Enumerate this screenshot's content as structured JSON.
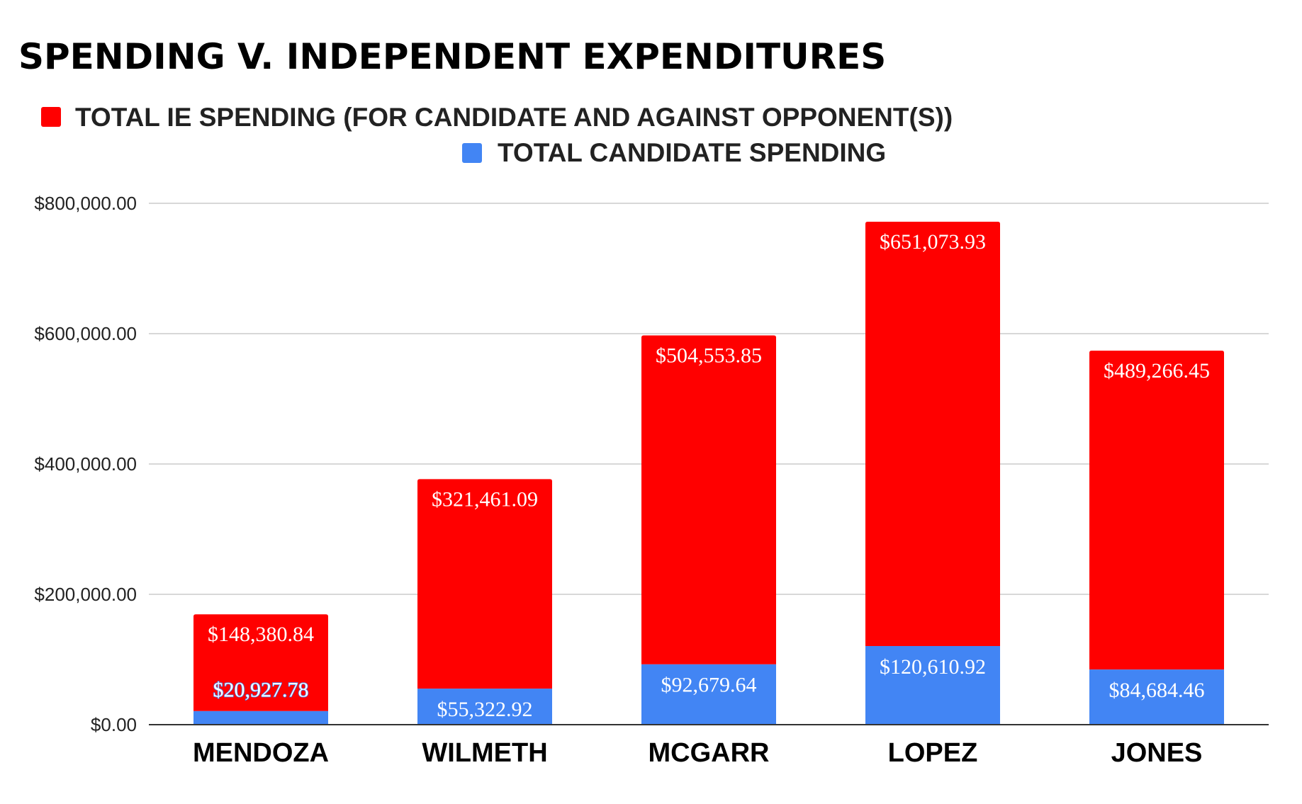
{
  "chart_data": {
    "type": "bar",
    "stacked": true,
    "title": "SPENDING V. INDEPENDENT EXPENDITURES",
    "categories": [
      "MENDOZA",
      "WILMETH",
      "MCGARR",
      "LOPEZ",
      "JONES"
    ],
    "series": [
      {
        "name": "TOTAL CANDIDATE SPENDING",
        "color": "#4285f4",
        "values": [
          20927.78,
          55322.92,
          92679.64,
          120610.92,
          84684.46
        ],
        "labels": [
          "$20,927.78",
          "$55,322.92",
          "$92,679.64",
          "$120,610.92",
          "$84,684.46"
        ]
      },
      {
        "name": "TOTAL IE SPENDING (FOR CANDIDATE AND AGAINST OPPONENT(S))",
        "color": "#ff0000",
        "values": [
          148380.84,
          321461.09,
          504553.85,
          651073.93,
          489266.45
        ],
        "labels": [
          "$148,380.84",
          "$321,461.09",
          "$504,553.85",
          "$651,073.93",
          "$489,266.45"
        ]
      }
    ],
    "legend_order": [
      1,
      0
    ],
    "ylim": [
      0,
      800000
    ],
    "yticks": [
      0,
      200000,
      400000,
      600000,
      800000
    ],
    "ytick_labels": [
      "$0.00",
      "$200,000.00",
      "$400,000.00",
      "$600,000.00",
      "$800,000.00"
    ],
    "xlabel": "",
    "ylabel": "",
    "grid": true,
    "legend_position": "top"
  }
}
